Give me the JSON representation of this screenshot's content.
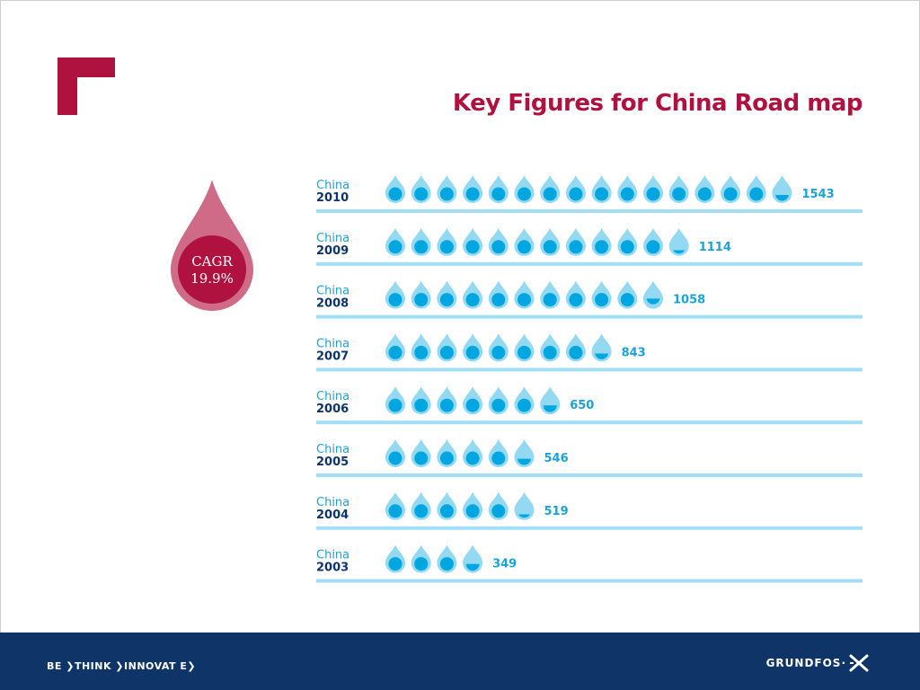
{
  "slide": {
    "title": "Key Figures for China Road map",
    "cagr_label": "CAGR",
    "cagr_value": "19.9%"
  },
  "colors": {
    "accent": "#b0123f",
    "drop_light": "#93d9f2",
    "drop_dark": "#00a6e0",
    "row_label_country": "#1aa3d6",
    "row_label_year": "#0f3468",
    "value_text": "#1aa3d6",
    "cagr_drop": "#cf6b86",
    "cagr_circle": "#b0123f",
    "footer": "#0f3468"
  },
  "footer": {
    "tagline": "BE ❯THINK ❯INNOVAT E❯",
    "brand": "GRUNDFOS·",
    "brand_icon": "grundfos-x-icon"
  },
  "chart_data": {
    "type": "bar",
    "title": "Key Figures for China Road map",
    "unit_per_drop": 100,
    "categories": [
      "China 2010",
      "China 2009",
      "China 2008",
      "China 2007",
      "China 2006",
      "China 2005",
      "China 2004",
      "China 2003"
    ],
    "rows": [
      {
        "country": "China",
        "year": "2010",
        "value": 1543
      },
      {
        "country": "China",
        "year": "2009",
        "value": 1114
      },
      {
        "country": "China",
        "year": "2008",
        "value": 1058
      },
      {
        "country": "China",
        "year": "2007",
        "value": 843
      },
      {
        "country": "China",
        "year": "2006",
        "value": 650
      },
      {
        "country": "China",
        "year": "2005",
        "value": 546
      },
      {
        "country": "China",
        "year": "2004",
        "value": 519
      },
      {
        "country": "China",
        "year": "2003",
        "value": 349
      }
    ],
    "values": [
      1543,
      1114,
      1058,
      843,
      650,
      546,
      519,
      349
    ],
    "annotation": "CAGR 19.9%"
  }
}
